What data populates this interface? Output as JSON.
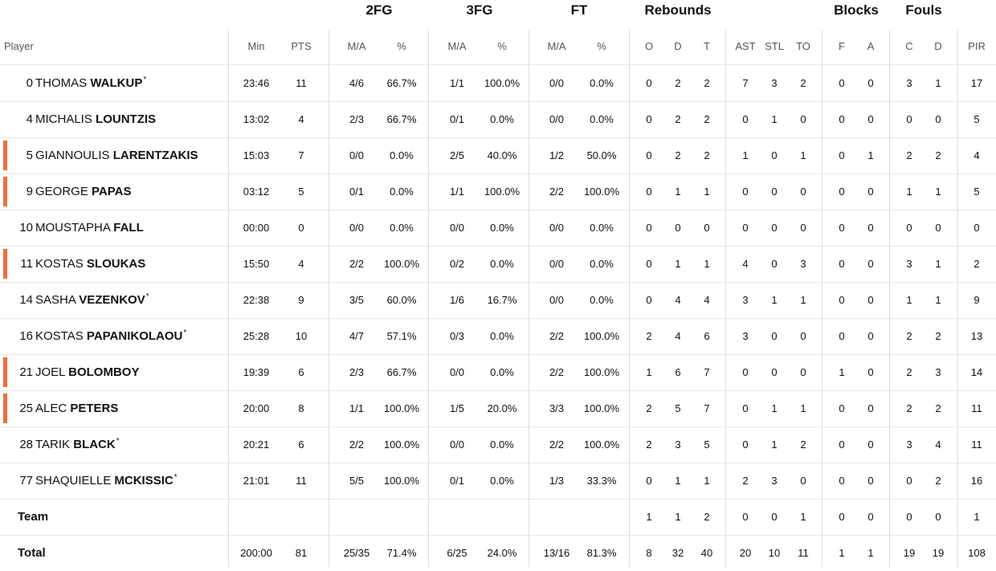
{
  "colors": {
    "starter_bar": "#f26d3d",
    "grid": "#dddddd"
  },
  "header": {
    "groups": {
      "fg2": "2FG",
      "fg3": "3FG",
      "ft": "FT",
      "rebounds": "Rebounds",
      "blocks": "Blocks",
      "fouls": "Fouls"
    },
    "cols": {
      "player": "Player",
      "min": "Min",
      "pts": "PTS",
      "fg2_ma": "M/A",
      "fg2_pct": "%",
      "fg3_ma": "M/A",
      "fg3_pct": "%",
      "ft_ma": "M/A",
      "ft_pct": "%",
      "reb_o": "O",
      "reb_d": "D",
      "reb_t": "T",
      "ast": "AST",
      "stl": "STL",
      "to": "TO",
      "blk_f": "F",
      "blk_a": "A",
      "foul_c": "C",
      "foul_d": "D",
      "pir": "PIR"
    }
  },
  "players": [
    {
      "num": "0",
      "first": "THOMAS",
      "last": "WALKUP",
      "star": "*",
      "marked": false,
      "min": "23:46",
      "pts": "11",
      "fg2_ma": "4/6",
      "fg2_pct": "66.7%",
      "fg3_ma": "1/1",
      "fg3_pct": "100.0%",
      "ft_ma": "0/0",
      "ft_pct": "0.0%",
      "reb_o": "0",
      "reb_d": "2",
      "reb_t": "2",
      "ast": "7",
      "stl": "3",
      "to": "2",
      "blk_f": "0",
      "blk_a": "0",
      "foul_c": "3",
      "foul_d": "1",
      "pir": "17"
    },
    {
      "num": "4",
      "first": "MICHALIS",
      "last": "LOUNTZIS",
      "star": "",
      "marked": false,
      "min": "13:02",
      "pts": "4",
      "fg2_ma": "2/3",
      "fg2_pct": "66.7%",
      "fg3_ma": "0/1",
      "fg3_pct": "0.0%",
      "ft_ma": "0/0",
      "ft_pct": "0.0%",
      "reb_o": "0",
      "reb_d": "2",
      "reb_t": "2",
      "ast": "0",
      "stl": "1",
      "to": "0",
      "blk_f": "0",
      "blk_a": "0",
      "foul_c": "0",
      "foul_d": "0",
      "pir": "5"
    },
    {
      "num": "5",
      "first": "GIANNOULIS",
      "last": "LARENTZAKIS",
      "star": "",
      "marked": true,
      "min": "15:03",
      "pts": "7",
      "fg2_ma": "0/0",
      "fg2_pct": "0.0%",
      "fg3_ma": "2/5",
      "fg3_pct": "40.0%",
      "ft_ma": "1/2",
      "ft_pct": "50.0%",
      "reb_o": "0",
      "reb_d": "2",
      "reb_t": "2",
      "ast": "1",
      "stl": "0",
      "to": "1",
      "blk_f": "0",
      "blk_a": "1",
      "foul_c": "2",
      "foul_d": "2",
      "pir": "4"
    },
    {
      "num": "9",
      "first": "GEORGE",
      "last": "PAPAS",
      "star": "",
      "marked": true,
      "min": "03:12",
      "pts": "5",
      "fg2_ma": "0/1",
      "fg2_pct": "0.0%",
      "fg3_ma": "1/1",
      "fg3_pct": "100.0%",
      "ft_ma": "2/2",
      "ft_pct": "100.0%",
      "reb_o": "0",
      "reb_d": "1",
      "reb_t": "1",
      "ast": "0",
      "stl": "0",
      "to": "0",
      "blk_f": "0",
      "blk_a": "0",
      "foul_c": "1",
      "foul_d": "1",
      "pir": "5"
    },
    {
      "num": "10",
      "first": "MOUSTAPHA",
      "last": "FALL",
      "star": "",
      "marked": false,
      "min": "00:00",
      "pts": "0",
      "fg2_ma": "0/0",
      "fg2_pct": "0.0%",
      "fg3_ma": "0/0",
      "fg3_pct": "0.0%",
      "ft_ma": "0/0",
      "ft_pct": "0.0%",
      "reb_o": "0",
      "reb_d": "0",
      "reb_t": "0",
      "ast": "0",
      "stl": "0",
      "to": "0",
      "blk_f": "0",
      "blk_a": "0",
      "foul_c": "0",
      "foul_d": "0",
      "pir": "0"
    },
    {
      "num": "11",
      "first": "KOSTAS",
      "last": "SLOUKAS",
      "star": "",
      "marked": true,
      "min": "15:50",
      "pts": "4",
      "fg2_ma": "2/2",
      "fg2_pct": "100.0%",
      "fg3_ma": "0/2",
      "fg3_pct": "0.0%",
      "ft_ma": "0/0",
      "ft_pct": "0.0%",
      "reb_o": "0",
      "reb_d": "1",
      "reb_t": "1",
      "ast": "4",
      "stl": "0",
      "to": "3",
      "blk_f": "0",
      "blk_a": "0",
      "foul_c": "3",
      "foul_d": "1",
      "pir": "2"
    },
    {
      "num": "14",
      "first": "SASHA",
      "last": "VEZENKOV",
      "star": "*",
      "marked": false,
      "min": "22:38",
      "pts": "9",
      "fg2_ma": "3/5",
      "fg2_pct": "60.0%",
      "fg3_ma": "1/6",
      "fg3_pct": "16.7%",
      "ft_ma": "0/0",
      "ft_pct": "0.0%",
      "reb_o": "0",
      "reb_d": "4",
      "reb_t": "4",
      "ast": "3",
      "stl": "1",
      "to": "1",
      "blk_f": "0",
      "blk_a": "0",
      "foul_c": "1",
      "foul_d": "1",
      "pir": "9"
    },
    {
      "num": "16",
      "first": "KOSTAS",
      "last": "PAPANIKOLAOU",
      "star": "*",
      "marked": false,
      "min": "25:28",
      "pts": "10",
      "fg2_ma": "4/7",
      "fg2_pct": "57.1%",
      "fg3_ma": "0/3",
      "fg3_pct": "0.0%",
      "ft_ma": "2/2",
      "ft_pct": "100.0%",
      "reb_o": "2",
      "reb_d": "4",
      "reb_t": "6",
      "ast": "3",
      "stl": "0",
      "to": "0",
      "blk_f": "0",
      "blk_a": "0",
      "foul_c": "2",
      "foul_d": "2",
      "pir": "13"
    },
    {
      "num": "21",
      "first": "JOEL",
      "last": "BOLOMBOY",
      "star": "",
      "marked": true,
      "min": "19:39",
      "pts": "6",
      "fg2_ma": "2/3",
      "fg2_pct": "66.7%",
      "fg3_ma": "0/0",
      "fg3_pct": "0.0%",
      "ft_ma": "2/2",
      "ft_pct": "100.0%",
      "reb_o": "1",
      "reb_d": "6",
      "reb_t": "7",
      "ast": "0",
      "stl": "0",
      "to": "0",
      "blk_f": "1",
      "blk_a": "0",
      "foul_c": "2",
      "foul_d": "3",
      "pir": "14"
    },
    {
      "num": "25",
      "first": "ALEC",
      "last": "PETERS",
      "star": "",
      "marked": true,
      "min": "20:00",
      "pts": "8",
      "fg2_ma": "1/1",
      "fg2_pct": "100.0%",
      "fg3_ma": "1/5",
      "fg3_pct": "20.0%",
      "ft_ma": "3/3",
      "ft_pct": "100.0%",
      "reb_o": "2",
      "reb_d": "5",
      "reb_t": "7",
      "ast": "0",
      "stl": "1",
      "to": "1",
      "blk_f": "0",
      "blk_a": "0",
      "foul_c": "2",
      "foul_d": "2",
      "pir": "11"
    },
    {
      "num": "28",
      "first": "TARIK",
      "last": "BLACK",
      "star": "*",
      "marked": false,
      "min": "20:21",
      "pts": "6",
      "fg2_ma": "2/2",
      "fg2_pct": "100.0%",
      "fg3_ma": "0/0",
      "fg3_pct": "0.0%",
      "ft_ma": "2/2",
      "ft_pct": "100.0%",
      "reb_o": "2",
      "reb_d": "3",
      "reb_t": "5",
      "ast": "0",
      "stl": "1",
      "to": "2",
      "blk_f": "0",
      "blk_a": "0",
      "foul_c": "3",
      "foul_d": "4",
      "pir": "11"
    },
    {
      "num": "77",
      "first": "SHAQUIELLE",
      "last": "MCKISSIC",
      "star": "*",
      "marked": false,
      "min": "21:01",
      "pts": "11",
      "fg2_ma": "5/5",
      "fg2_pct": "100.0%",
      "fg3_ma": "0/1",
      "fg3_pct": "0.0%",
      "ft_ma": "1/3",
      "ft_pct": "33.3%",
      "reb_o": "0",
      "reb_d": "1",
      "reb_t": "1",
      "ast": "2",
      "stl": "3",
      "to": "0",
      "blk_f": "0",
      "blk_a": "0",
      "foul_c": "0",
      "foul_d": "2",
      "pir": "16"
    }
  ],
  "team": {
    "label": "Team",
    "min": "",
    "pts": "",
    "fg2_ma": "",
    "fg2_pct": "",
    "fg3_ma": "",
    "fg3_pct": "",
    "ft_ma": "",
    "ft_pct": "",
    "reb_o": "1",
    "reb_d": "1",
    "reb_t": "2",
    "ast": "0",
    "stl": "0",
    "to": "1",
    "blk_f": "0",
    "blk_a": "0",
    "foul_c": "0",
    "foul_d": "0",
    "pir": "1"
  },
  "total": {
    "label": "Total",
    "min": "200:00",
    "pts": "81",
    "fg2_ma": "25/35",
    "fg2_pct": "71.4%",
    "fg3_ma": "6/25",
    "fg3_pct": "24.0%",
    "ft_ma": "13/16",
    "ft_pct": "81.3%",
    "reb_o": "8",
    "reb_d": "32",
    "reb_t": "40",
    "ast": "20",
    "stl": "10",
    "to": "11",
    "blk_f": "1",
    "blk_a": "1",
    "foul_c": "19",
    "foul_d": "19",
    "pir": "108"
  }
}
